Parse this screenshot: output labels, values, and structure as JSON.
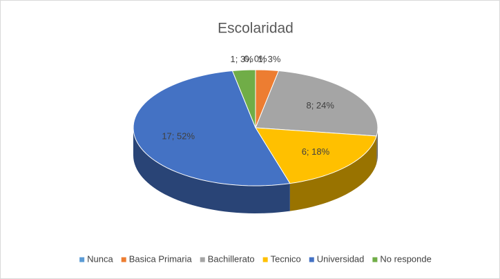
{
  "chart_data": {
    "type": "pie3d",
    "title": "Escolaridad",
    "categories": [
      "Nunca",
      "Basica Primaria",
      "Bachillerato",
      "Tecnico",
      "Universidad",
      "No responde"
    ],
    "values": [
      0,
      1,
      8,
      6,
      17,
      1
    ],
    "value_labels": [
      "0; 0%",
      "1; 3%",
      "8; 24%",
      "6; 18%",
      "17; 52%",
      "1; 3%"
    ],
    "colors": [
      "#5b9bd5",
      "#ed7d31",
      "#a5a5a5",
      "#ffc000",
      "#4472c4",
      "#70ad47"
    ],
    "legend": "bottom"
  }
}
